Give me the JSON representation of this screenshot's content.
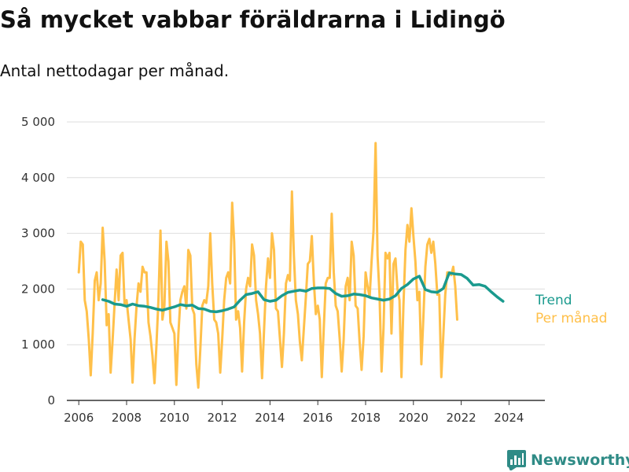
{
  "title": "Så mycket vabbar föräldrarna i Lidingö",
  "subtitle": "Antal nettodagar per månad.",
  "brand": {
    "name": "Newsworthy"
  },
  "colors": {
    "trend": "#1a9a8e",
    "monthly": "#ffc04a",
    "grid": "#dddddd",
    "axis": "#333333",
    "brand": "#2f8b86"
  },
  "chart_data": {
    "type": "line",
    "title": "Så mycket vabbar föräldrarna i Lidingö",
    "subtitle": "Antal nettodagar per månad.",
    "xlabel": "",
    "ylabel": "",
    "xlim": [
      2005.5,
      2025.5
    ],
    "ylim": [
      0,
      5000
    ],
    "x_ticks": [
      2006,
      2008,
      2010,
      2012,
      2014,
      2016,
      2018,
      2020,
      2022,
      2024
    ],
    "x_tick_labels": [
      "2006",
      "2008",
      "2010",
      "2012",
      "2014",
      "2016",
      "2018",
      "2020",
      "2022",
      "2024"
    ],
    "y_ticks": [
      0,
      1000,
      2000,
      3000,
      4000,
      5000
    ],
    "y_tick_labels": [
      "0",
      "1 000",
      "2 000",
      "3 000",
      "4 000",
      "5 000"
    ],
    "grid": "horizontal",
    "legend": "right, at end of lines",
    "series": [
      {
        "name": "Trend",
        "color": "#1a9a8e",
        "x_start": 2007.0,
        "step": 0.25,
        "values": [
          1810,
          1780,
          1730,
          1720,
          1690,
          1730,
          1700,
          1690,
          1670,
          1640,
          1620,
          1650,
          1680,
          1720,
          1700,
          1710,
          1650,
          1640,
          1600,
          1590,
          1610,
          1640,
          1680,
          1800,
          1900,
          1920,
          1950,
          1810,
          1780,
          1800,
          1880,
          1940,
          1960,
          1980,
          1960,
          2010,
          2020,
          2020,
          2010,
          1920,
          1870,
          1880,
          1910,
          1900,
          1880,
          1840,
          1820,
          1800,
          1820,
          1880,
          2010,
          2080,
          2180,
          2230,
          1990,
          1950,
          1940,
          2010,
          2290,
          2270,
          2260,
          2190,
          2070,
          2080,
          2050,
          1950,
          1860,
          1780
        ]
      },
      {
        "name": "Per månad",
        "color": "#ffc04a",
        "x_start": 2006.0,
        "step": 0.0833333,
        "values": [
          2300,
          2850,
          2800,
          1800,
          1600,
          1100,
          450,
          1200,
          2150,
          2300,
          1800,
          2100,
          3100,
          2500,
          1350,
          1550,
          500,
          1100,
          1750,
          2350,
          1800,
          2600,
          2650,
          1700,
          1800,
          1450,
          1100,
          320,
          1100,
          1700,
          2100,
          1950,
          2400,
          2300,
          2300,
          1400,
          1150,
          800,
          310,
          1000,
          1800,
          3050,
          1450,
          1700,
          2850,
          2500,
          1400,
          1300,
          1200,
          280,
          1200,
          1800,
          1950,
          2050,
          1650,
          2700,
          2600,
          1650,
          1550,
          650,
          230,
          900,
          1700,
          1800,
          1750,
          2050,
          3000,
          2100,
          1450,
          1400,
          1200,
          500,
          1100,
          1800,
          2200,
          2300,
          2100,
          3550,
          2850,
          1450,
          1600,
          1300,
          520,
          1400,
          2000,
          2200,
          2050,
          2800,
          2600,
          1800,
          1550,
          1200,
          400,
          1250,
          2050,
          2550,
          2200,
          3000,
          2700,
          1650,
          1600,
          1100,
          600,
          1200,
          2100,
          2250,
          2150,
          3750,
          2600,
          1800,
          1550,
          1050,
          720,
          1300,
          1850,
          2450,
          2500,
          2950,
          2150,
          1550,
          1700,
          1450,
          420,
          1300,
          2100,
          2200,
          2200,
          3350,
          2300,
          1700,
          1600,
          1100,
          520,
          1100,
          2050,
          2200,
          1800,
          2850,
          2600,
          1700,
          1650,
          1050,
          550,
          1150,
          2300,
          2050,
          1850,
          2500,
          3050,
          4620,
          2600,
          1900,
          520,
          1300,
          2650,
          2550,
          2650,
          1200,
          2450,
          2550,
          2000,
          1800,
          420,
          1700,
          2700,
          3150,
          2850,
          3450,
          2950,
          2500,
          1800,
          1950,
          650,
          1500,
          2400,
          2800,
          2900,
          2650,
          2850,
          2450,
          1900,
          1900,
          420,
          1150,
          1900,
          2300,
          2300,
          2250,
          2400,
          2050,
          1450
        ]
      }
    ]
  }
}
